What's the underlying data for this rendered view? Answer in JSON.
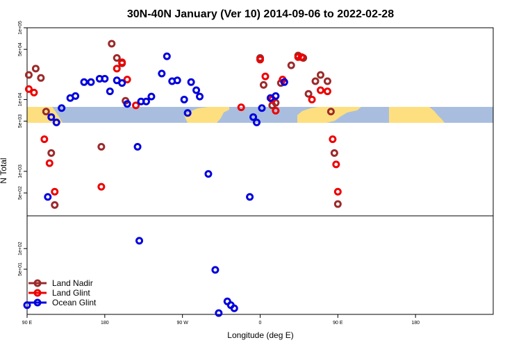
{
  "chart_data": {
    "type": "scatter",
    "title": "30N-40N January (Ver 10)   2014-09-06 to 2022-02-28",
    "xlabel": "Longitude (deg E)",
    "ylabel": "N Total",
    "x_axis": {
      "range_lon_unwrapped": [
        -90,
        180
      ],
      "ticks": [
        {
          "lon": -90,
          "label": "90 E"
        },
        {
          "lon": -45,
          "label": "180"
        },
        {
          "lon": 0,
          "label": "90 W"
        },
        {
          "lon": 45,
          "label": "0"
        },
        {
          "lon": 90,
          "label": "90 E"
        },
        {
          "lon": 135,
          "label": "180"
        }
      ]
    },
    "y_axis": {
      "scale": "log",
      "upper_panel": {
        "range": [
          240,
          100000
        ],
        "ticks": [
          {
            "value": 500,
            "label": "5e+02"
          },
          {
            "value": 1000,
            "label": "1e+03"
          },
          {
            "value": 5000,
            "label": "5e+03"
          },
          {
            "value": 10000,
            "label": "1e+04"
          },
          {
            "value": 50000,
            "label": "5e+04"
          },
          {
            "value": 100000,
            "label": "1e+05"
          }
        ]
      },
      "lower_panel": {
        "range": [
          11,
          300
        ],
        "ticks": [
          {
            "value": 50,
            "label": "5e+01"
          },
          {
            "value": 100,
            "label": "1e+02"
          }
        ]
      }
    },
    "legend": {
      "position": "bottom-left",
      "entries": [
        "Land Nadir",
        "Land Glint",
        "Ocean Glint"
      ]
    },
    "series": [
      {
        "name": "Land Nadir",
        "color": "#9b2a2a",
        "points": [
          [
            -89,
            22000
          ],
          [
            -85,
            27000
          ],
          [
            -82,
            20000
          ],
          [
            -79,
            6800
          ],
          [
            -76,
            1800
          ],
          [
            -74,
            340
          ],
          [
            -47,
            2200
          ],
          [
            -41,
            60000
          ],
          [
            -38,
            38000
          ],
          [
            -35,
            32000
          ],
          [
            -33,
            9600
          ],
          [
            45,
            38000
          ],
          [
            47,
            16000
          ],
          [
            52,
            8300
          ],
          [
            54,
            9000
          ],
          [
            57,
            17000
          ],
          [
            63,
            30000
          ],
          [
            67,
            41000
          ],
          [
            70,
            38000
          ],
          [
            73,
            12000
          ],
          [
            77,
            18000
          ],
          [
            80,
            22000
          ],
          [
            84,
            18000
          ],
          [
            86,
            6800
          ],
          [
            88,
            1800
          ],
          [
            90,
            350
          ]
        ]
      },
      {
        "name": "Land Glint",
        "color": "#ee0000",
        "points": [
          [
            -89,
            14000
          ],
          [
            -86,
            12500
          ],
          [
            -80,
            2800
          ],
          [
            -77,
            1300
          ],
          [
            -74,
            520
          ],
          [
            -47,
            610
          ],
          [
            -38,
            27000
          ],
          [
            -35,
            33000
          ],
          [
            -32,
            19000
          ],
          [
            -27,
            8300
          ],
          [
            34,
            7800
          ],
          [
            45,
            36000
          ],
          [
            48,
            21000
          ],
          [
            52,
            10000
          ],
          [
            54,
            7000
          ],
          [
            58,
            19000
          ],
          [
            67,
            39000
          ],
          [
            69,
            39000
          ],
          [
            75,
            10000
          ],
          [
            80,
            13500
          ],
          [
            84,
            13000
          ],
          [
            87,
            2800
          ],
          [
            89,
            1250
          ],
          [
            90,
            520
          ]
        ]
      },
      {
        "name": "Ocean Glint",
        "color": "#0000dd",
        "points": [
          [
            -90,
            15
          ],
          [
            -78,
            440
          ],
          [
            -76,
            5700
          ],
          [
            -73,
            4800
          ],
          [
            -70,
            7600
          ],
          [
            -65,
            10500
          ],
          [
            -62,
            11200
          ],
          [
            -57,
            17500
          ],
          [
            -53,
            17500
          ],
          [
            -48,
            19500
          ],
          [
            -45,
            19500
          ],
          [
            -42,
            13000
          ],
          [
            -38,
            18500
          ],
          [
            -35,
            17000
          ],
          [
            -32,
            8700
          ],
          [
            -26,
            2200
          ],
          [
            -25,
            130
          ],
          [
            -24,
            9400
          ],
          [
            -21,
            9400
          ],
          [
            -18,
            11000
          ],
          [
            -12,
            23000
          ],
          [
            -9,
            40000
          ],
          [
            -6,
            18000
          ],
          [
            -3,
            18500
          ],
          [
            1,
            10000
          ],
          [
            3,
            6500
          ],
          [
            5,
            17500
          ],
          [
            8,
            13500
          ],
          [
            10,
            11000
          ],
          [
            15,
            920
          ],
          [
            19,
            49
          ],
          [
            21,
            11.5
          ],
          [
            26,
            17
          ],
          [
            28,
            15
          ],
          [
            30,
            13.5
          ],
          [
            39,
            440
          ],
          [
            41,
            5700
          ],
          [
            43,
            4800
          ],
          [
            46,
            7600
          ],
          [
            51,
            10500
          ],
          [
            54,
            11200
          ],
          [
            59,
            17500
          ]
        ]
      }
    ]
  },
  "map_strip": {
    "ocean_color": "#a9bedf",
    "land_color": "#fedf7f"
  }
}
